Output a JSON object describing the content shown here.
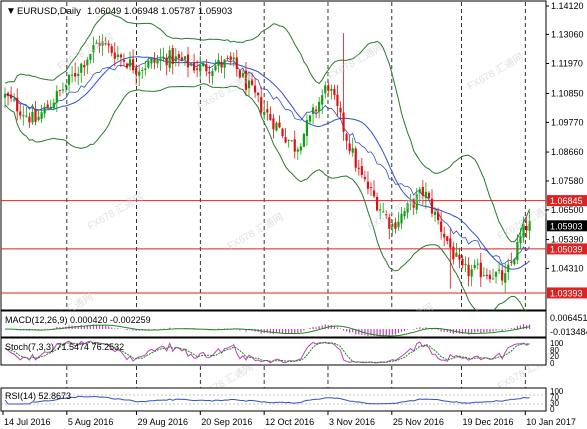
{
  "header": {
    "symbol_label": "EURUSD,Daily",
    "ohlc_label": "1.06049 1.06948 1.05787 1.05903"
  },
  "colors": {
    "background": "#ffffff",
    "bull_candle": "#11a011",
    "bear_candle": "#e01010",
    "bollinger": "#2a7a2a",
    "moving_average": "#3050c8",
    "horizontal_line": "#dd2222",
    "grid": "#000000",
    "macd_histogram": "#c040c0",
    "macd_signal": "#1a8a1a",
    "stoch_main": "#c040c0",
    "stoch_signal": "#1a8a1a",
    "rsi_line": "#3050c8"
  },
  "watermark": {
    "text": "FX678 汇通网"
  },
  "chart_data": [
    {
      "type": "candlestick",
      "name": "EURUSD,Daily",
      "overlays": [
        "Bollinger Bands",
        "Moving Average"
      ],
      "grid": "vertical dashed",
      "x_ticks": [
        "14 Jul 2016",
        "5 Aug 2016",
        "29 Aug 2016",
        "20 Sep 2016",
        "12 Oct 2016",
        "3 Nov 2016",
        "25 Nov 2016",
        "19 Dec 2016",
        "10 Jan 2017"
      ],
      "y_ticks": [
        "1.14120",
        "1.13060",
        "1.11970",
        "1.10850",
        "1.09770",
        "1.08660",
        "1.07580",
        "1.06500",
        "1.05390",
        "1.04310"
      ],
      "ylim": [
        1.0283,
        1.1412
      ],
      "last_price_label": "1.05903",
      "last_price": 1.05903,
      "horizontal_lines": [
        {
          "label": "1.06845",
          "value": 1.06845
        },
        {
          "label": "1.05039",
          "value": 1.05039
        },
        {
          "label": "1.03393",
          "value": 1.03393
        }
      ],
      "close_path": [
        {
          "date": "2016-07-14",
          "close": 1.108
        },
        {
          "date": "2016-07-25",
          "close": 1.098
        },
        {
          "date": "2016-08-05",
          "close": 1.112
        },
        {
          "date": "2016-08-16",
          "close": 1.128
        },
        {
          "date": "2016-08-29",
          "close": 1.118
        },
        {
          "date": "2016-09-09",
          "close": 1.122
        },
        {
          "date": "2016-09-20",
          "close": 1.118
        },
        {
          "date": "2016-10-01",
          "close": 1.12
        },
        {
          "date": "2016-10-12",
          "close": 1.102
        },
        {
          "date": "2016-10-23",
          "close": 1.088
        },
        {
          "date": "2016-11-03",
          "close": 1.112
        },
        {
          "date": "2016-11-14",
          "close": 1.078
        },
        {
          "date": "2016-11-25",
          "close": 1.059
        },
        {
          "date": "2016-12-06",
          "close": 1.072
        },
        {
          "date": "2016-12-19",
          "close": 1.042
        },
        {
          "date": "2016-12-28",
          "close": 1.042
        },
        {
          "date": "2017-01-03",
          "close": 1.039
        },
        {
          "date": "2017-01-10",
          "close": 1.059
        }
      ]
    },
    {
      "type": "macd",
      "label": "MACD(12,26,9) 0.000420 -0.002259",
      "y_ticks": [
        "0.006451",
        "-0.013484"
      ]
    },
    {
      "type": "stochastic",
      "label": "Stoch(7,3,3) 71.5474 76.2532",
      "y_ticks": [
        "100",
        "80",
        "20",
        "0"
      ]
    },
    {
      "type": "rsi",
      "label": "RSI(14) 52.8673",
      "y_ticks": [
        "100",
        "70",
        "30",
        "0"
      ]
    }
  ]
}
